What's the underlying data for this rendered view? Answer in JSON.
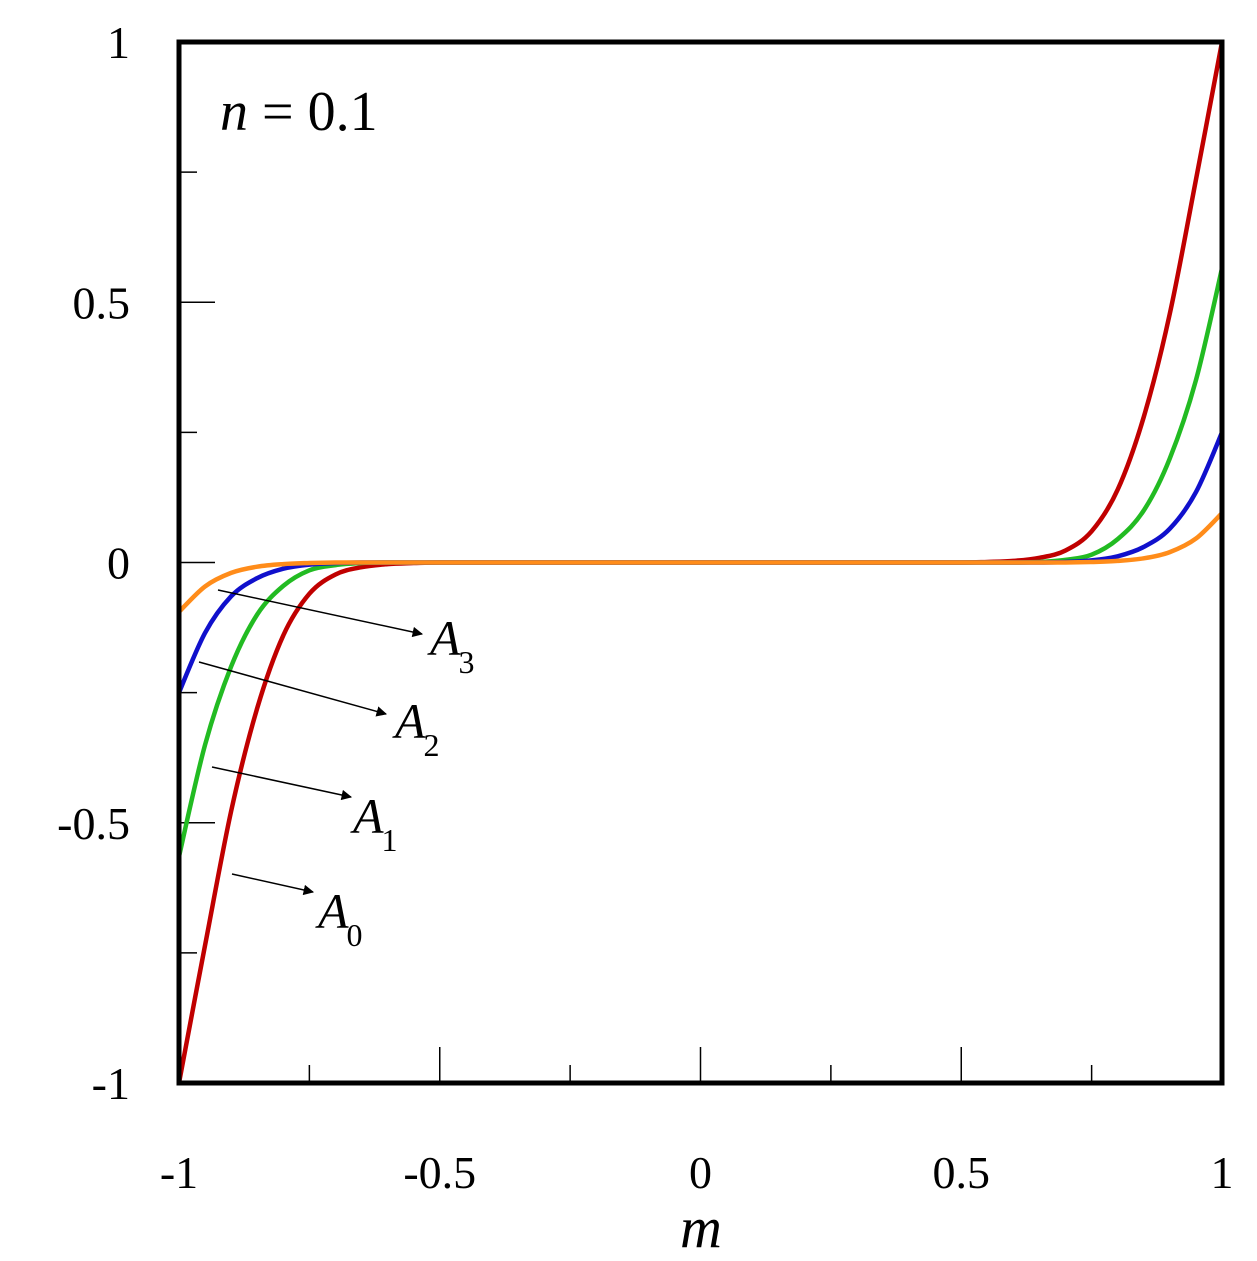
{
  "chart_data": {
    "type": "line",
    "xlabel": "m",
    "ylabel": "",
    "xlim": [
      -1,
      1
    ],
    "ylim": [
      -1,
      1
    ],
    "x_ticks": [
      "-1",
      "-0.5",
      "0",
      "0.5",
      "1"
    ],
    "y_ticks": [
      "-1",
      "-0.5",
      "0",
      "0.5",
      "1"
    ],
    "x_tick_values": [
      -1,
      -0.5,
      0,
      0.5,
      1
    ],
    "y_tick_values": [
      -1,
      -0.5,
      0,
      0.5,
      1
    ],
    "grid": false,
    "annotation": {
      "variable": "n",
      "operator": "=",
      "value": "0.1"
    },
    "x": [
      -1,
      -0.95,
      -0.9,
      -0.85,
      -0.8,
      -0.75,
      -0.7,
      -0.65,
      -0.6,
      -0.55,
      -0.5,
      -0.4,
      -0.3,
      -0.2,
      -0.1,
      0,
      0.1,
      0.2,
      0.3,
      0.4,
      0.5,
      0.55,
      0.6,
      0.65,
      0.7,
      0.75,
      0.8,
      0.85,
      0.9,
      0.95,
      1
    ],
    "series": [
      {
        "label_main": "A",
        "label_sub": "0",
        "color": "#c00000",
        "values": [
          -1,
          -0.735,
          -0.478,
          -0.28,
          -0.14,
          -0.06,
          -0.023,
          -0.009,
          -0.003,
          -0.001,
          0,
          0,
          0,
          0,
          0,
          0,
          0,
          0,
          0,
          0,
          0,
          0.001,
          0.003,
          0.009,
          0.023,
          0.06,
          0.14,
          0.28,
          0.478,
          0.735,
          1
        ]
      },
      {
        "label_main": "A",
        "label_sub": "1",
        "color": "#22bb22",
        "values": [
          -0.565,
          -0.35,
          -0.2,
          -0.1,
          -0.045,
          -0.015,
          -0.005,
          -0.001,
          0,
          0,
          0,
          0,
          0,
          0,
          0,
          0,
          0,
          0,
          0,
          0,
          0,
          0,
          0,
          0.001,
          0.005,
          0.015,
          0.045,
          0.1,
          0.2,
          0.35,
          0.565
        ]
      },
      {
        "label_main": "A",
        "label_sub": "2",
        "color": "#1010cc",
        "values": [
          -0.25,
          -0.135,
          -0.065,
          -0.03,
          -0.012,
          -0.004,
          -0.001,
          0,
          0,
          0,
          0,
          0,
          0,
          0,
          0,
          0,
          0,
          0,
          0,
          0,
          0,
          0,
          0,
          0,
          0.001,
          0.004,
          0.012,
          0.03,
          0.065,
          0.135,
          0.25
        ]
      },
      {
        "label_main": "A",
        "label_sub": "3",
        "color": "#ff8c1a",
        "values": [
          -0.095,
          -0.046,
          -0.02,
          -0.008,
          -0.003,
          -0.001,
          0,
          0,
          0,
          0,
          0,
          0,
          0,
          0,
          0,
          0,
          0,
          0,
          0,
          0,
          0,
          0,
          0,
          0,
          0,
          0.001,
          0.003,
          0.008,
          0.02,
          0.046,
          0.095
        ]
      }
    ]
  }
}
